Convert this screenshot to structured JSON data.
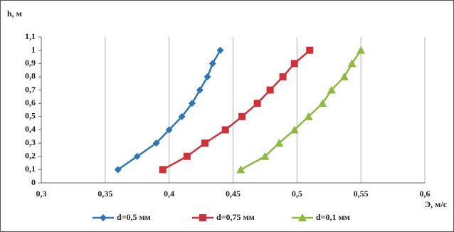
{
  "chart_data": {
    "type": "line",
    "y_label": "h, м",
    "x_label": "Э, м/с",
    "xlim": [
      0.3,
      0.6
    ],
    "ylim": [
      0,
      1.1
    ],
    "xticks": [
      {
        "value": 0.3,
        "label": "0,3"
      },
      {
        "value": 0.35,
        "label": "0,35"
      },
      {
        "value": 0.4,
        "label": "0,4"
      },
      {
        "value": 0.45,
        "label": "0,45"
      },
      {
        "value": 0.5,
        "label": "0,5"
      },
      {
        "value": 0.55,
        "label": "0,55"
      },
      {
        "value": 0.6,
        "label": "0,6"
      }
    ],
    "yticks": [
      0,
      {
        "value": 0.1,
        "label": "0,1"
      },
      {
        "value": 0.2,
        "label": "0,2"
      },
      {
        "value": 0.3,
        "label": "0,3"
      },
      {
        "value": 0.4,
        "label": "0,4"
      },
      {
        "value": 0.5,
        "label": "0,5"
      },
      {
        "value": 0.6,
        "label": "0,6"
      },
      {
        "value": 0.7,
        "label": "0,7"
      },
      {
        "value": 0.8,
        "label": "0,8"
      },
      {
        "value": 0.9,
        "label": "0,9"
      },
      1,
      {
        "value": 1.1,
        "label": "1,1"
      }
    ],
    "grid": "x",
    "series": [
      {
        "name": "d=0,5 мм",
        "color": "#2e75b6",
        "marker": "diamond",
        "x": [
          0.36,
          0.375,
          0.39,
          0.4,
          0.41,
          0.418,
          0.424,
          0.43,
          0.434,
          0.44
        ],
        "values": [
          0.1,
          0.2,
          0.3,
          0.4,
          0.5,
          0.6,
          0.7,
          0.8,
          0.9,
          1
        ]
      },
      {
        "name": "d=0,75 мм",
        "color": "#d0303a",
        "marker": "square",
        "x": [
          0.395,
          0.414,
          0.428,
          0.444,
          0.457,
          0.469,
          0.479,
          0.489,
          0.498,
          0.51
        ],
        "values": [
          0.1,
          0.2,
          0.3,
          0.4,
          0.5,
          0.6,
          0.7,
          0.8,
          0.9,
          1
        ]
      },
      {
        "name": "d=0,1 мм",
        "color": "#8dbb3f",
        "marker": "triangle",
        "x": [
          0.456,
          0.475,
          0.486,
          0.498,
          0.509,
          0.52,
          0.527,
          0.537,
          0.543,
          0.55
        ],
        "values": [
          0.1,
          0.2,
          0.3,
          0.4,
          0.5,
          0.6,
          0.7,
          0.8,
          0.9,
          1
        ]
      }
    ]
  }
}
